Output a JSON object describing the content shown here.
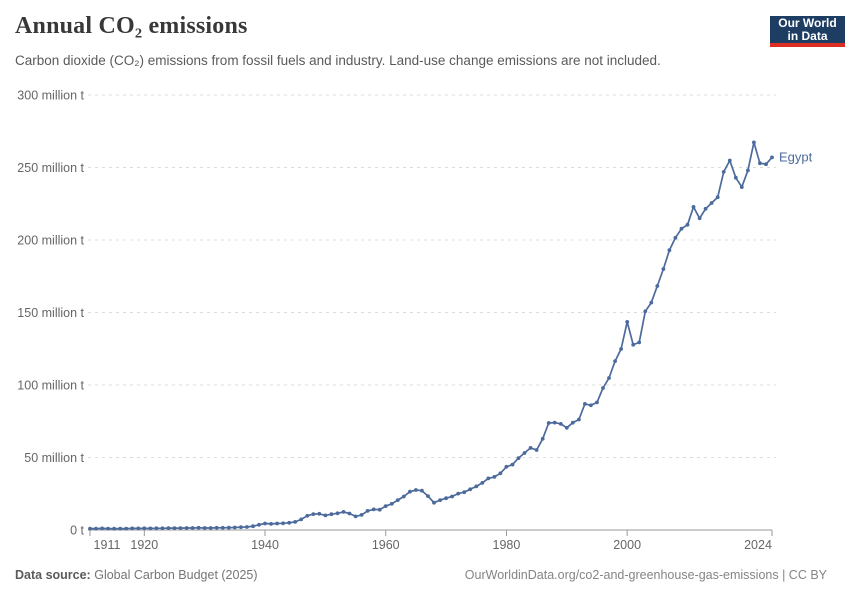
{
  "header": {
    "title": "Annual CO₂ emissions",
    "subtitle": "Carbon dioxide (CO₂) emissions from fossil fuels and industry. Land-use change emissions are not included.",
    "logo": {
      "line1": "Our World",
      "line2": "in Data",
      "bg_color": "#1d3d63",
      "accent_color": "#dc2e22"
    }
  },
  "footer": {
    "source_label": "Data source:",
    "source_value": "Global Carbon Budget (2025)",
    "link": "OurWorldinData.org/co2-and-greenhouse-gas-emissions",
    "separator": " | ",
    "license": "CC BY"
  },
  "chart_data": {
    "type": "line",
    "title": "Annual CO₂ emissions",
    "entity": "Egypt",
    "unit": "million t",
    "line_color": "#4C6A9C",
    "label_color": "#4C6A9C",
    "grid_color": "#dcdcdc",
    "axis_color": "#999999",
    "tick_text_color": "#666666",
    "grid": "horizontal-dashed",
    "legend_position": "end-of-line",
    "ylim": [
      0,
      300
    ],
    "xlim": [
      1911,
      2024
    ],
    "y_ticks": [
      {
        "value": 0,
        "label": "0 t"
      },
      {
        "value": 50,
        "label": "50 million t"
      },
      {
        "value": 100,
        "label": "100 million t"
      },
      {
        "value": 150,
        "label": "150 million t"
      },
      {
        "value": 200,
        "label": "200 million t"
      },
      {
        "value": 250,
        "label": "250 million t"
      },
      {
        "value": 300,
        "label": "300 million t"
      }
    ],
    "x_ticks": [
      {
        "year": 1911,
        "label": "1911"
      },
      {
        "year": 1920,
        "label": "1920"
      },
      {
        "year": 1940,
        "label": "1940"
      },
      {
        "year": 1960,
        "label": "1960"
      },
      {
        "year": 1980,
        "label": "1980"
      },
      {
        "year": 2000,
        "label": "2000"
      },
      {
        "year": 2024,
        "label": "2024"
      }
    ],
    "x": [
      1911,
      1912,
      1913,
      1914,
      1915,
      1916,
      1917,
      1918,
      1919,
      1920,
      1921,
      1922,
      1923,
      1924,
      1925,
      1926,
      1927,
      1928,
      1929,
      1930,
      1931,
      1932,
      1933,
      1934,
      1935,
      1936,
      1937,
      1938,
      1939,
      1940,
      1941,
      1942,
      1943,
      1944,
      1945,
      1946,
      1947,
      1948,
      1949,
      1950,
      1951,
      1952,
      1953,
      1954,
      1955,
      1956,
      1957,
      1958,
      1959,
      1960,
      1961,
      1962,
      1963,
      1964,
      1965,
      1966,
      1967,
      1968,
      1969,
      1970,
      1971,
      1972,
      1973,
      1974,
      1975,
      1976,
      1977,
      1978,
      1979,
      1980,
      1981,
      1982,
      1983,
      1984,
      1985,
      1986,
      1987,
      1988,
      1989,
      1990,
      1991,
      1992,
      1993,
      1994,
      1995,
      1996,
      1997,
      1998,
      1999,
      2000,
      2001,
      2002,
      2003,
      2004,
      2005,
      2006,
      2007,
      2008,
      2009,
      2010,
      2011,
      2012,
      2013,
      2014,
      2015,
      2016,
      2017,
      2018,
      2019,
      2020,
      2021,
      2022,
      2023,
      2024
    ],
    "values": [
      1.0,
      1.0,
      1.1,
      1.0,
      0.9,
      1.0,
      1.0,
      1.1,
      1.1,
      1.2,
      1.1,
      1.2,
      1.2,
      1.3,
      1.3,
      1.3,
      1.4,
      1.4,
      1.5,
      1.4,
      1.4,
      1.5,
      1.5,
      1.6,
      1.7,
      1.9,
      2.1,
      2.6,
      3.6,
      4.5,
      4.2,
      4.5,
      4.6,
      5.0,
      5.6,
      7.3,
      9.8,
      11.0,
      11.2,
      10.1,
      10.9,
      11.5,
      12.5,
      11.4,
      9.4,
      10.4,
      13.2,
      14.2,
      14.0,
      16.5,
      18.1,
      20.6,
      23.1,
      26.4,
      27.6,
      27.1,
      23.4,
      18.8,
      20.6,
      21.9,
      23.1,
      25.1,
      26.1,
      28.1,
      30.1,
      32.5,
      35.6,
      36.6,
      39.1,
      43.6,
      45.1,
      49.6,
      53.1,
      56.6,
      55.2,
      62.9,
      73.8,
      74.1,
      73.2,
      70.5,
      74.0,
      76.2,
      87.0,
      86.0,
      88.0,
      97.9,
      104.8,
      116.5,
      124.8,
      143.5,
      127.8,
      129.4,
      150.8,
      156.8,
      168.3,
      180.0,
      193.0,
      201.5,
      207.8,
      210.5,
      222.8,
      215.0,
      221.5,
      225.5,
      229.5,
      247.0,
      254.8,
      243.0,
      236.5,
      248.0,
      267.3,
      253.0,
      252.3,
      257.0
    ]
  }
}
